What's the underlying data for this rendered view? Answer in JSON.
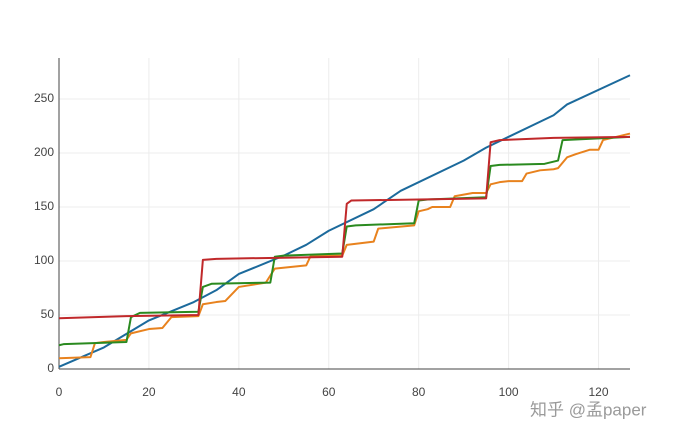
{
  "chart_data": {
    "type": "line",
    "xlim": [
      0,
      127
    ],
    "ylim": [
      0,
      288
    ],
    "xticks": [
      0,
      20,
      40,
      60,
      80,
      100,
      120
    ],
    "yticks": [
      0,
      50,
      100,
      150,
      200,
      250
    ],
    "grid": true,
    "series": [
      {
        "color": "#1c6a9c",
        "x": [
          0,
          10,
          20,
          30,
          35,
          40,
          50,
          55,
          60,
          70,
          76,
          90,
          95,
          100,
          110,
          113,
          127
        ],
        "values": [
          2,
          20,
          45,
          62,
          73,
          88,
          105,
          115,
          128,
          148,
          165,
          193,
          205,
          215,
          235,
          245,
          272
        ]
      },
      {
        "color": "#e8821e",
        "x": [
          0,
          7,
          8,
          10,
          15,
          16,
          20,
          23,
          25,
          31,
          32,
          35,
          37,
          40,
          46,
          48,
          55,
          56,
          63,
          64,
          70,
          71,
          79,
          80,
          82,
          83,
          87,
          88,
          92,
          95,
          96,
          98,
          100,
          103,
          104,
          107,
          110,
          111,
          113,
          115,
          118,
          120,
          121,
          127
        ],
        "values": [
          10,
          11,
          24,
          25,
          27,
          33,
          37,
          38,
          48,
          49,
          60,
          62,
          63,
          76,
          80,
          93,
          96,
          105,
          105,
          115,
          118,
          130,
          133,
          146,
          148,
          150,
          150,
          160,
          163,
          163,
          171,
          173,
          174,
          174,
          181,
          184,
          185,
          186,
          196,
          199,
          203,
          203,
          212,
          218
        ]
      },
      {
        "color": "#2a8a1f",
        "x": [
          0,
          1,
          15,
          16,
          18,
          31,
          32,
          34,
          47,
          48,
          50,
          63,
          64,
          66,
          79,
          80,
          82,
          95,
          96,
          98,
          108,
          111,
          112,
          127
        ],
        "values": [
          22,
          23,
          25,
          48,
          52,
          53,
          76,
          79,
          80,
          104,
          105,
          107,
          132,
          133,
          135,
          156,
          157,
          159,
          188,
          189,
          190,
          193,
          212,
          215
        ]
      },
      {
        "color": "#c0282a",
        "x": [
          0,
          15,
          31,
          32,
          35,
          63,
          64,
          65,
          95,
          96,
          98,
          110,
          127
        ],
        "values": [
          47,
          49,
          50,
          101,
          102,
          104,
          153,
          156,
          158,
          210,
          212,
          214,
          215
        ]
      }
    ]
  },
  "watermark": "知乎 @孟paper"
}
